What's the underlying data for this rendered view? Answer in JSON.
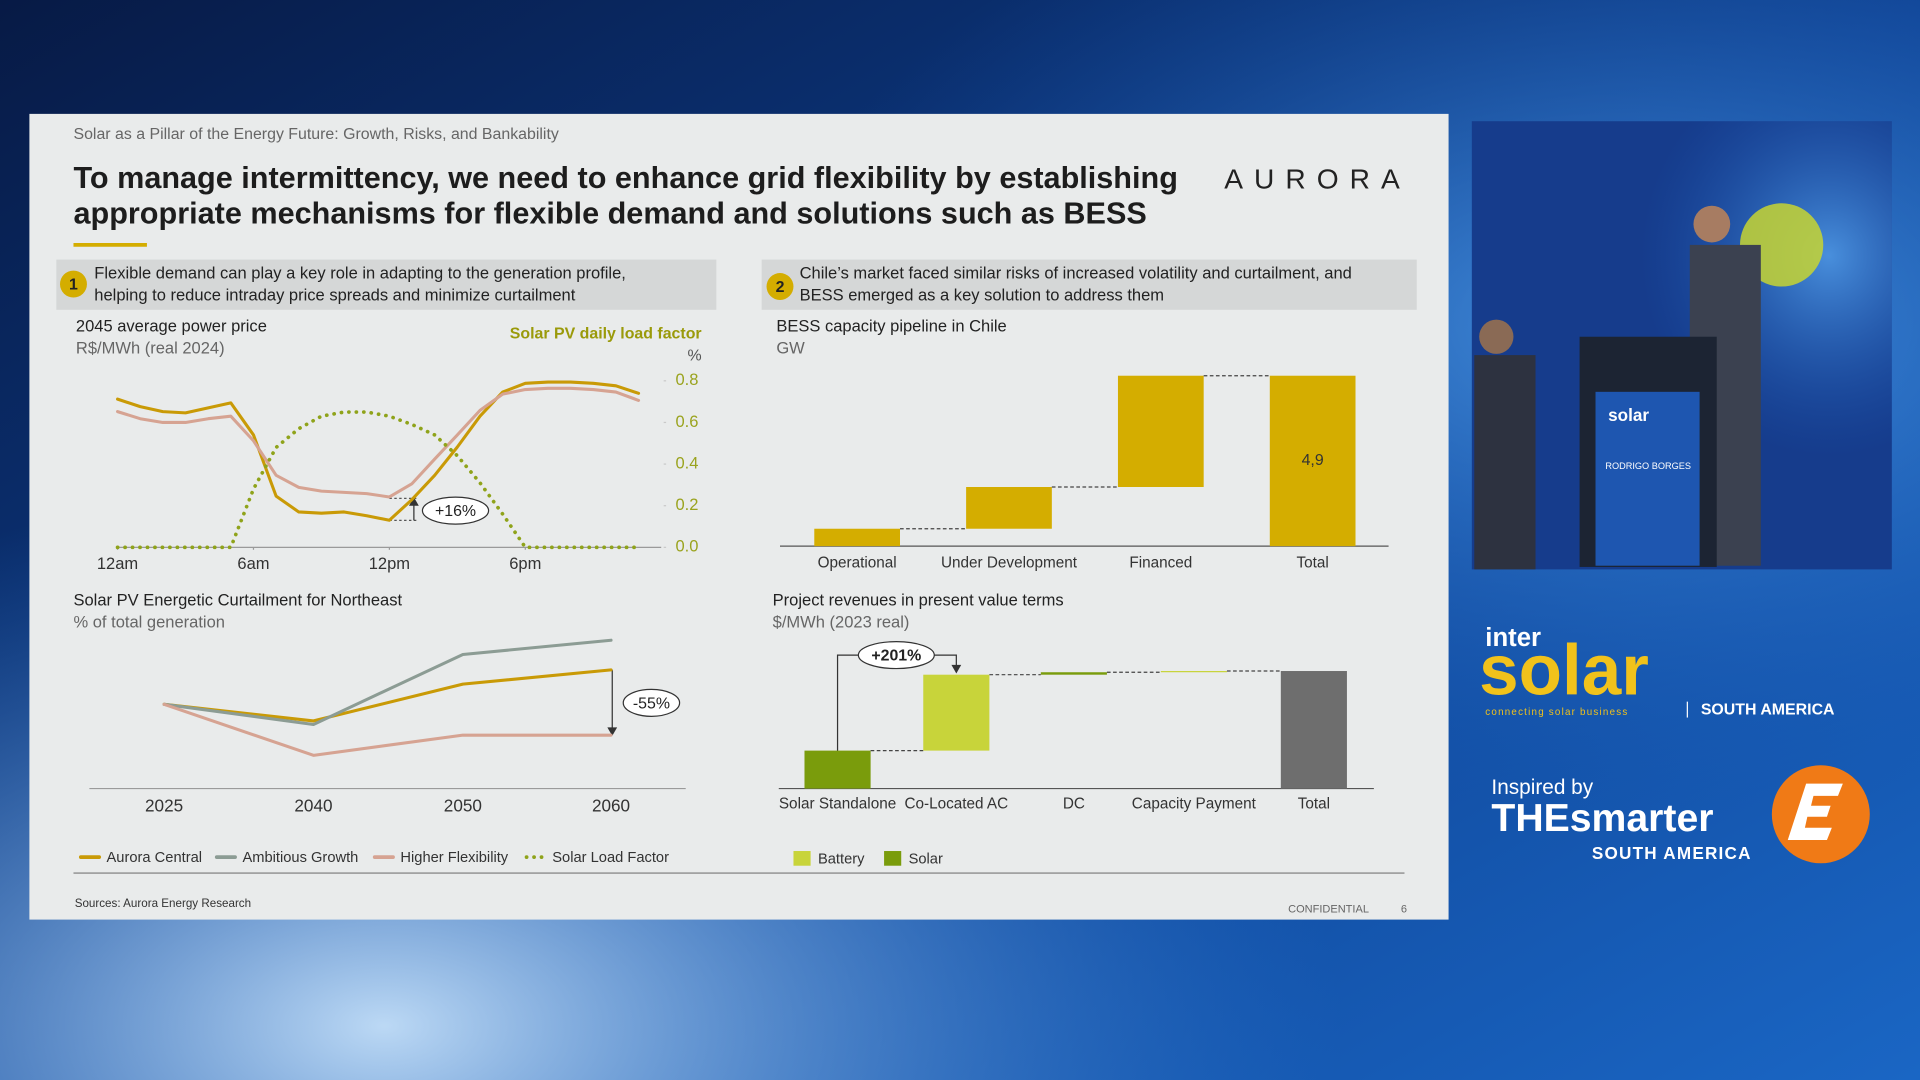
{
  "slide": {
    "subtitle": "Solar as a Pillar of the Energy Future: Growth, Risks, and Bankability",
    "title_lines": [
      "To manage intermittency, we need to enhance grid flexibility by establishing",
      "appropriate mechanisms for flexible demand and solutions such as BESS"
    ],
    "logo": "AURORA",
    "section_1": {
      "number": "1",
      "text_lines": [
        "Flexible demand can play a key role in adapting to the generation profile,",
        "helping to reduce intraday price spreads and minimize curtailment"
      ]
    },
    "section_2": {
      "number": "2",
      "text_lines": [
        "Chile’s market faced similar risks of increased volatility and curtailment, and",
        "BESS emerged as a key solution to address them"
      ]
    },
    "source": "Sources: Aurora Energy Research",
    "confidential": "CONFIDENTIAL",
    "page": "6"
  },
  "chart_data": [
    {
      "type": "line",
      "title": "2045 average power price",
      "subtitle": "R$/MWh (real 2024)",
      "y_label": "Solar PV daily load factor",
      "y_unit": "%",
      "x": [
        0,
        1,
        2,
        3,
        4,
        5,
        6,
        7,
        8,
        9,
        10,
        11,
        12,
        13,
        14,
        15,
        16,
        17,
        18,
        19,
        20,
        21,
        22,
        23
      ],
      "xlim": [
        0,
        24
      ],
      "xticks": [
        {
          "value": 0,
          "label": "12am"
        },
        {
          "value": 6,
          "label": "6am"
        },
        {
          "value": 12,
          "label": "12pm"
        },
        {
          "value": 18,
          "label": "6pm"
        }
      ],
      "ylim": [
        0,
        0.8
      ],
      "yticks": [
        {
          "value": 0,
          "label": "0.0"
        },
        0.2,
        0.4,
        0.6,
        0.8
      ],
      "y2lim": [
        0,
        400
      ],
      "series": [
        {
          "color": "#c99a06",
          "axis": "y2",
          "values": [
            356,
            338,
            326,
            323,
            335,
            347,
            270,
            123,
            85,
            82,
            85,
            76,
            65,
            115,
            173,
            241,
            315,
            373,
            394,
            397,
            397,
            394,
            388,
            370
          ]
        },
        {
          "color": "#d6a392",
          "axis": "y2",
          "values": [
            326,
            309,
            300,
            300,
            309,
            315,
            256,
            173,
            144,
            135,
            132,
            129,
            121,
            153,
            212,
            270,
            329,
            368,
            379,
            382,
            382,
            379,
            373,
            353
          ]
        },
        {
          "name": "Solar Load Factor",
          "color": "#8fa31a",
          "style": "dotted",
          "values": [
            0,
            0,
            0,
            0,
            0,
            0,
            0.28,
            0.48,
            0.57,
            0.63,
            0.65,
            0.65,
            0.63,
            0.59,
            0.54,
            0.44,
            0.31,
            0.16,
            0,
            0,
            0,
            0,
            0,
            0
          ]
        }
      ],
      "annotation": "+16%"
    },
    {
      "type": "line",
      "title": "Solar PV Energetic Curtailment for Northeast",
      "subtitle": "% of total generation",
      "categories": [
        "2025",
        "2040",
        "2050",
        "2060"
      ],
      "ylim": [
        0,
        13
      ],
      "series": [
        {
          "name": "Aurora Central",
          "color": "#c99a06",
          "values": [
            7.1,
            5.7,
            8.8,
            10.0
          ]
        },
        {
          "name": "Ambitious Growth",
          "color": "#8c9c94",
          "values": [
            7.1,
            5.4,
            11.3,
            12.5
          ]
        },
        {
          "name": "Higher Flexibility",
          "color": "#d6a392",
          "values": [
            7.1,
            2.8,
            4.5,
            4.5
          ]
        }
      ],
      "annotation": "-55%"
    },
    {
      "type": "waterfall",
      "title": "BESS capacity pipeline in Chile",
      "subtitle": "GW",
      "categories": [
        "Operational",
        "Under Development",
        "Financed"
      ],
      "values": [
        0.5,
        1.2,
        3.2
      ],
      "color": "#d4ad00",
      "total": {
        "category": "Total",
        "value": 4.9,
        "value_label": "4,9"
      },
      "ylim": [
        0,
        5
      ]
    },
    {
      "type": "waterfall",
      "title": "Project revenues in present value terms",
      "subtitle": "$/MWh (2023 real)",
      "categories": [
        "Solar Standalone",
        "Co-Located AC",
        "DC",
        "Capacity Payment"
      ],
      "series": [
        {
          "name": "Battery",
          "color": "#c8d43a",
          "values": [
            0,
            62,
            0,
            1
          ]
        },
        {
          "name": "Solar",
          "color": "#7a9c0c",
          "values": [
            31,
            0,
            2,
            0
          ]
        }
      ],
      "total": {
        "category": "Total",
        "value": 96,
        "color": "#6e6e6e"
      },
      "ylim": [
        0,
        100
      ],
      "annotation": "+201%"
    }
  ],
  "video": {
    "podium": "solar",
    "speaker": "RODRIGO BORGES"
  },
  "branding": {
    "inter": "inter",
    "solar": "solar",
    "tagline": "connecting solar business",
    "region": "SOUTH AMERICA",
    "inspired": "Inspired by",
    "smarter": "THEsmarter",
    "smarter_region": "SOUTH AMERICA"
  }
}
